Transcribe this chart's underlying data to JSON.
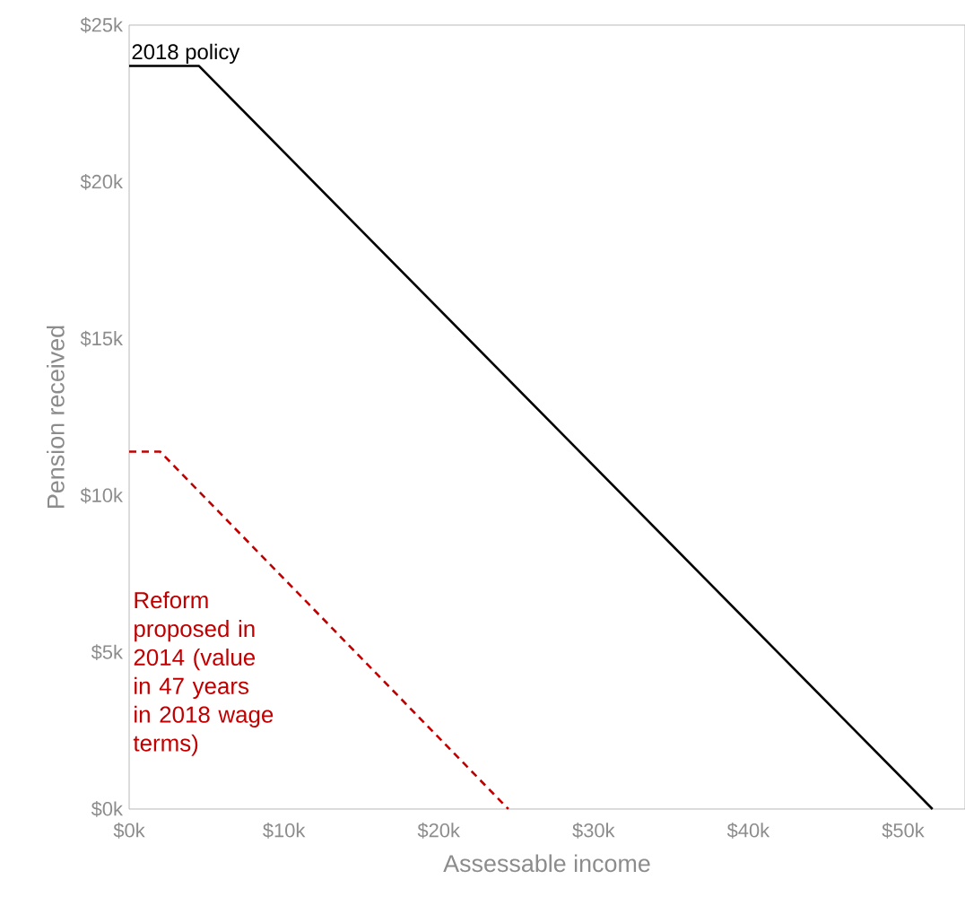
{
  "chart_data": {
    "type": "line",
    "xlabel": "Assessable income",
    "ylabel": "Pension received",
    "xlim": [
      0,
      54000
    ],
    "ylim": [
      0,
      25000
    ],
    "xticks": [
      {
        "value": 0,
        "label": "$0k"
      },
      {
        "value": 10000,
        "label": "$10k"
      },
      {
        "value": 20000,
        "label": "$20k"
      },
      {
        "value": 30000,
        "label": "$30k"
      },
      {
        "value": 40000,
        "label": "$40k"
      },
      {
        "value": 50000,
        "label": "$50k"
      }
    ],
    "yticks": [
      {
        "value": 0,
        "label": "$0k"
      },
      {
        "value": 5000,
        "label": "$5k"
      },
      {
        "value": 10000,
        "label": "$10k"
      },
      {
        "value": 15000,
        "label": "$15k"
      },
      {
        "value": 20000,
        "label": "$20k"
      },
      {
        "value": 25000,
        "label": "$25k"
      }
    ],
    "series": [
      {
        "name": "2018  policy",
        "color": "#000000",
        "line_style": "solid",
        "x": [
          0,
          4500,
          51900
        ],
        "values": [
          23700,
          23700,
          0
        ]
      },
      {
        "name": "Reform proposed in 2014 (value in 47 years in 2018 wage terms)",
        "color": "#c00000",
        "line_style": "dashed",
        "x": [
          0,
          2000,
          24500
        ],
        "values": [
          11400,
          11400,
          0
        ]
      }
    ]
  }
}
